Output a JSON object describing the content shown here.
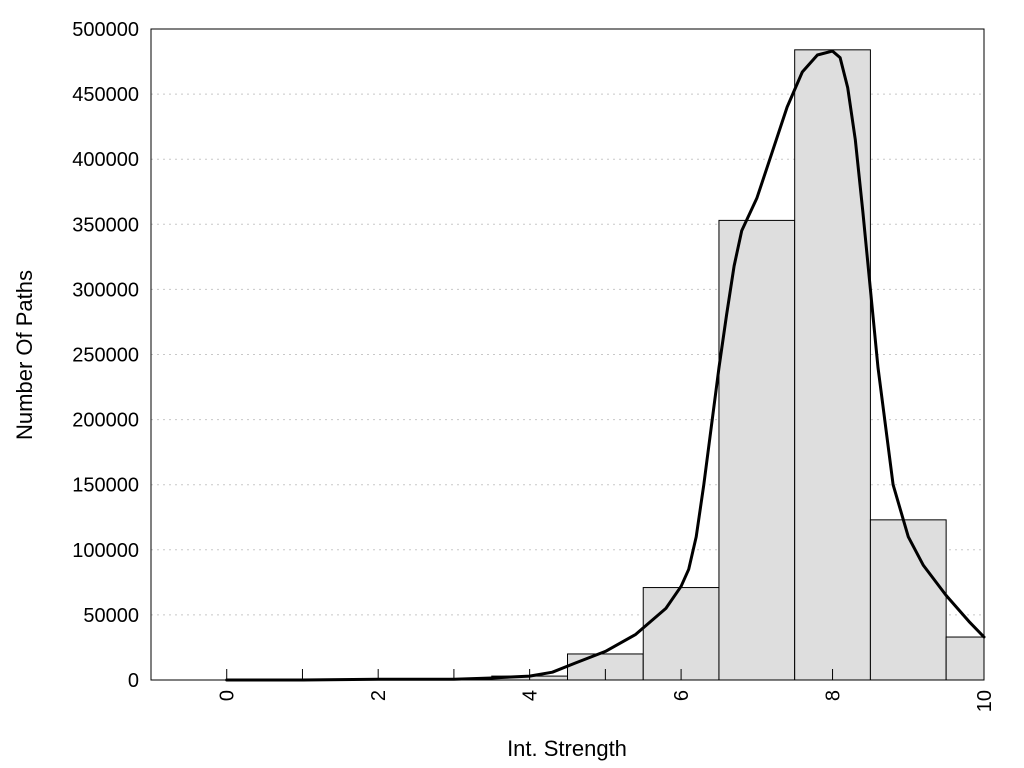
{
  "chart_data": {
    "type": "bar",
    "title": "",
    "xlabel": "Int. Strength",
    "ylabel": "Number Of Paths",
    "xlim": [
      -1,
      10
    ],
    "ylim": [
      0,
      500000
    ],
    "grid": "horizontal dotted",
    "legend": "none",
    "x_ticks": [
      "0",
      "2",
      "4",
      "6",
      "8",
      "10"
    ],
    "x_tick_values": [
      0,
      2,
      4,
      6,
      8,
      10
    ],
    "minor_x_ticks": [
      1,
      3,
      5
    ],
    "y_ticks": [
      "0",
      "50000",
      "100000",
      "150000",
      "200000",
      "250000",
      "300000",
      "350000",
      "400000",
      "450000",
      "500000"
    ],
    "y_tick_values": [
      0,
      50000,
      100000,
      150000,
      200000,
      250000,
      300000,
      350000,
      400000,
      450000,
      500000
    ],
    "bins": [
      {
        "x": 0,
        "value": 0
      },
      {
        "x": 1,
        "value": 0
      },
      {
        "x": 2,
        "value": 500
      },
      {
        "x": 3,
        "value": 500
      },
      {
        "x": 4,
        "value": 3000
      },
      {
        "x": 5,
        "value": 20000
      },
      {
        "x": 6,
        "value": 71000
      },
      {
        "x": 7,
        "value": 353000
      },
      {
        "x": 8,
        "value": 484000
      },
      {
        "x": 9,
        "value": 123000
      },
      {
        "x": 10,
        "value": 33000
      }
    ],
    "curve": [
      [
        0,
        0
      ],
      [
        1,
        0
      ],
      [
        1.5,
        300
      ],
      [
        2,
        600
      ],
      [
        2.5,
        500
      ],
      [
        3,
        600
      ],
      [
        3.5,
        1500
      ],
      [
        4,
        3000
      ],
      [
        4.3,
        6000
      ],
      [
        4.6,
        13000
      ],
      [
        5,
        22000
      ],
      [
        5.4,
        35000
      ],
      [
        5.8,
        55000
      ],
      [
        6,
        72000
      ],
      [
        6.1,
        85000
      ],
      [
        6.2,
        110000
      ],
      [
        6.3,
        150000
      ],
      [
        6.4,
        195000
      ],
      [
        6.5,
        240000
      ],
      [
        6.6,
        280000
      ],
      [
        6.7,
        318000
      ],
      [
        6.8,
        345000
      ],
      [
        7,
        370000
      ],
      [
        7.2,
        405000
      ],
      [
        7.4,
        440000
      ],
      [
        7.6,
        467000
      ],
      [
        7.8,
        480000
      ],
      [
        8,
        483000
      ],
      [
        8.1,
        478000
      ],
      [
        8.2,
        455000
      ],
      [
        8.3,
        415000
      ],
      [
        8.4,
        360000
      ],
      [
        8.5,
        300000
      ],
      [
        8.6,
        240000
      ],
      [
        8.8,
        150000
      ],
      [
        9,
        110000
      ],
      [
        9.2,
        88000
      ],
      [
        9.5,
        65000
      ],
      [
        9.8,
        45000
      ],
      [
        10,
        33000
      ]
    ]
  }
}
